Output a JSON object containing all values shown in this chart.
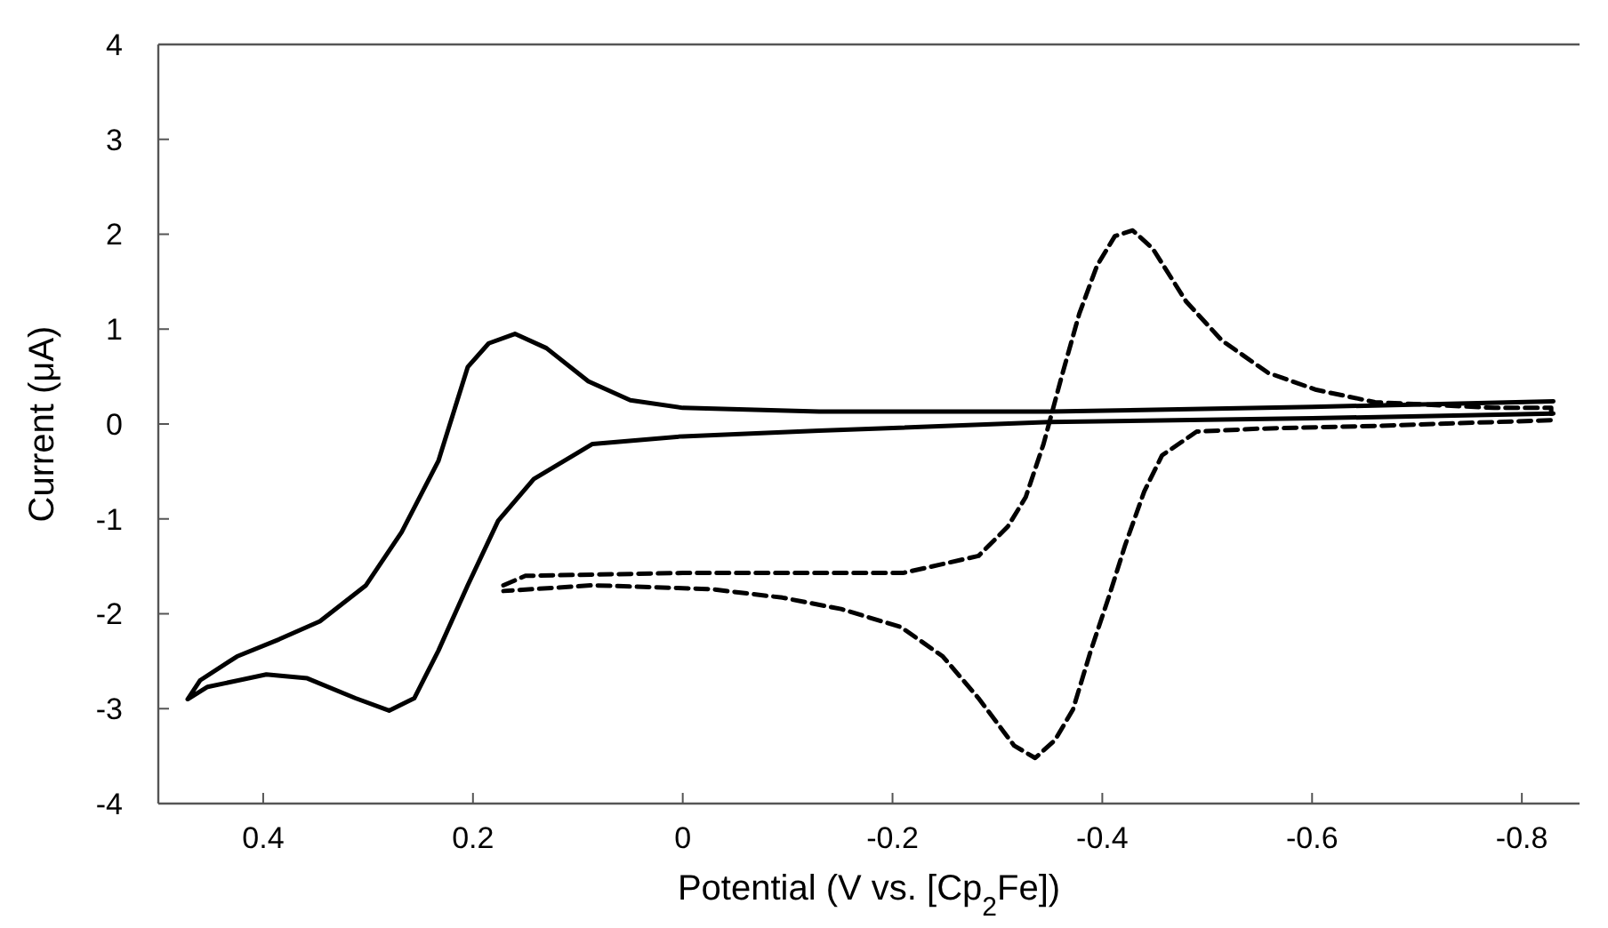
{
  "chart_data": {
    "type": "line",
    "xlabel": "Potential  (V vs. [Cp$_{2}$Fe])",
    "ylabel": "Current  (μA)",
    "xlim": [
      0.5,
      -0.855
    ],
    "ylim": [
      -4,
      4
    ],
    "xticks": [
      0.4,
      0.2,
      0,
      -0.2,
      -0.4,
      -0.6,
      -0.8
    ],
    "yticks": [
      -4,
      -3,
      -2,
      -1,
      0,
      1,
      2,
      3,
      4
    ],
    "grid": false,
    "marker": "none",
    "series": [
      {
        "color": "#000000",
        "line_style": "solid",
        "x": [
          -0.83,
          -0.6,
          -0.35,
          -0.13,
          0,
          0.05,
          0.09,
          0.13,
          0.16,
          0.185,
          0.205,
          0.233,
          0.268,
          0.302,
          0.346,
          0.385,
          0.425,
          0.46,
          0.472,
          0.453,
          0.397,
          0.358,
          0.312,
          0.28,
          0.256,
          0.233,
          0.205,
          0.176,
          0.142,
          0.086,
          0,
          -0.13,
          -0.35,
          -0.6,
          -0.83
        ],
        "values": [
          0.24,
          0.18,
          0.13,
          0.13,
          0.17,
          0.25,
          0.45,
          0.8,
          0.95,
          0.85,
          0.6,
          -0.39,
          -1.14,
          -1.7,
          -2.08,
          -2.27,
          -2.45,
          -2.7,
          -2.9,
          -2.77,
          -2.64,
          -2.68,
          -2.89,
          -3.02,
          -2.89,
          -2.39,
          -1.7,
          -1.02,
          -0.58,
          -0.21,
          -0.13,
          -0.07,
          0.02,
          0.06,
          0.11
        ]
      },
      {
        "color": "#000000",
        "line_style": "dashed",
        "x": [
          0.171,
          0.15,
          0,
          -0.21,
          -0.282,
          -0.31,
          -0.327,
          -0.344,
          -0.361,
          -0.378,
          -0.395,
          -0.412,
          -0.429,
          -0.448,
          -0.48,
          -0.514,
          -0.558,
          -0.604,
          -0.66,
          -0.774,
          -0.828,
          -0.828,
          -0.66,
          -0.548,
          -0.49,
          -0.457,
          -0.44,
          -0.422,
          -0.406,
          -0.389,
          -0.372,
          -0.355,
          -0.336,
          -0.316,
          -0.282,
          -0.248,
          -0.208,
          -0.151,
          -0.095,
          -0.027,
          0.086,
          0.171
        ],
        "values": [
          -1.7,
          -1.6,
          -1.57,
          -1.57,
          -1.39,
          -1.08,
          -0.77,
          -0.21,
          0.49,
          1.16,
          1.67,
          1.98,
          2.04,
          1.85,
          1.29,
          0.88,
          0.54,
          0.36,
          0.23,
          0.17,
          0.17,
          0.04,
          -0.02,
          -0.05,
          -0.08,
          -0.33,
          -0.71,
          -1.27,
          -1.83,
          -2.39,
          -3.01,
          -3.33,
          -3.52,
          -3.39,
          -2.89,
          -2.45,
          -2.14,
          -1.95,
          -1.83,
          -1.74,
          -1.7,
          -1.76
        ]
      }
    ]
  }
}
